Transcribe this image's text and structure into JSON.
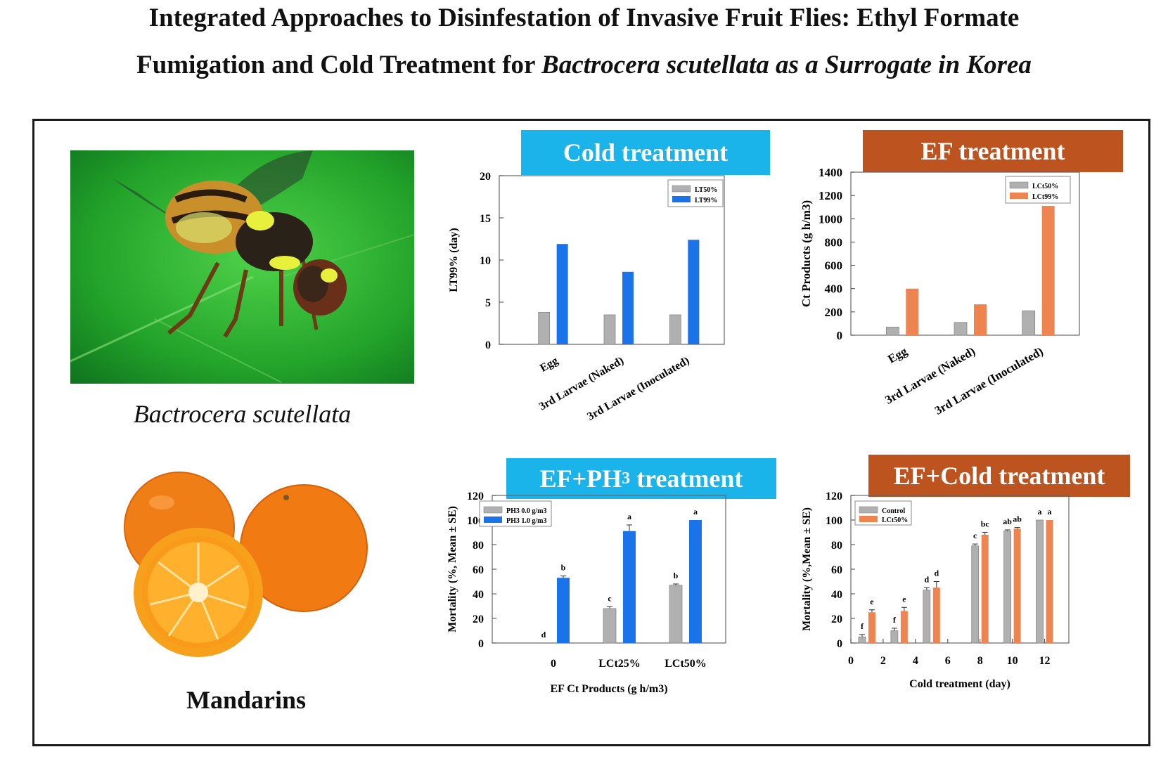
{
  "header": {
    "title_line1": "Integrated Approaches to Disinfestation of Invasive Fruit Flies: Ethyl Formate",
    "title_line2_a": "Fumigation and Cold Treatment for ",
    "title_line2_b": "Bactrocera scutellata as a Surrogate in Korea"
  },
  "images": [
    {
      "caption": "Bactrocera scutellata",
      "icon": "fruit-fly-photo"
    },
    {
      "caption": "Mandarins",
      "icon": "mandarins-photo"
    }
  ],
  "colors": {
    "blue_header": "#1ab3ea",
    "orange_header": "#bd531f",
    "bar_gray": "#b0b0b0",
    "bar_blue": "#1a73e8",
    "bar_orange": "#ee8450"
  },
  "chart_data": [
    {
      "id": "cold",
      "type": "bar",
      "header": "Cold treatment",
      "title": "",
      "categories": [
        "Egg",
        "3rd Larvae (Naked)",
        "3rd Larvae (Inoculated)"
      ],
      "series": [
        {
          "name": "LT50%",
          "values": [
            3.8,
            3.5,
            3.5
          ]
        },
        {
          "name": "LT99%",
          "values": [
            11.9,
            8.6,
            12.4
          ]
        }
      ],
      "ylabel": "LT99% (day)",
      "xlabel": "",
      "ylim": [
        0,
        20
      ],
      "yticks": [
        0,
        5,
        10,
        15,
        20
      ],
      "legend": "top-right"
    },
    {
      "id": "ef",
      "type": "bar",
      "header": "EF treatment",
      "title": "",
      "categories": [
        "Egg",
        "3rd Larvae (Naked)",
        "3rd Larvae (Inoculated)"
      ],
      "series": [
        {
          "name": "LCt50%",
          "values": [
            70,
            110,
            210
          ]
        },
        {
          "name": "LCt99%",
          "values": [
            400,
            265,
            1110
          ]
        }
      ],
      "ylabel": "Ct Products (g h/m3)",
      "xlabel": "",
      "ylim": [
        0,
        1400
      ],
      "yticks": [
        0,
        200,
        400,
        600,
        800,
        1000,
        1200,
        1400
      ],
      "legend": "top-right"
    },
    {
      "id": "efph3",
      "type": "bar",
      "header_main": "EF+PH",
      "header_sub": "3",
      "header_tail": " treatment",
      "title": "",
      "categories": [
        "0",
        "LCt25%",
        "LCt50%"
      ],
      "series": [
        {
          "name": "PH3 0.0 g/m3",
          "values": [
            0,
            28,
            47
          ],
          "errors": [
            0,
            1.5,
            1
          ],
          "letters": [
            "d",
            "c",
            "b"
          ]
        },
        {
          "name": "PH3 1.0 g/m3",
          "values": [
            53,
            91,
            100
          ],
          "errors": [
            1.5,
            5,
            0
          ],
          "letters": [
            "b",
            "a",
            "a"
          ]
        }
      ],
      "ylabel": "Mortality (%, Mean ± SE)",
      "xlabel": "EF Ct Products (g h/m3)",
      "ylim": [
        0,
        120
      ],
      "yticks": [
        0,
        20,
        40,
        60,
        80,
        100,
        120
      ],
      "legend": "top-left"
    },
    {
      "id": "efcold",
      "type": "bar",
      "header": "EF+Cold treatment",
      "title": "",
      "x": [
        1,
        3,
        5,
        8,
        10,
        12
      ],
      "series": [
        {
          "name": "Control",
          "values": [
            5,
            10,
            43,
            79,
            91,
            100
          ],
          "errors": [
            2,
            2,
            2,
            1.5,
            1,
            0
          ],
          "letters": [
            "f",
            "f",
            "d",
            "c",
            "ab",
            "a"
          ]
        },
        {
          "name": "LCt50%",
          "values": [
            25,
            26,
            45,
            88,
            93,
            100
          ],
          "errors": [
            2,
            3,
            5,
            2,
            1,
            0
          ],
          "letters": [
            "e",
            "e",
            "d",
            "bc",
            "ab",
            "a"
          ]
        }
      ],
      "ylabel": "Mortality (%,Mean ± SE)",
      "xlabel": "Cold treatment (day)",
      "xlim": [
        0,
        13.5
      ],
      "xticks": [
        0,
        2,
        4,
        6,
        8,
        10,
        12
      ],
      "ylim": [
        0,
        120
      ],
      "yticks": [
        0,
        20,
        40,
        60,
        80,
        100,
        120
      ],
      "legend": "top-left"
    }
  ]
}
